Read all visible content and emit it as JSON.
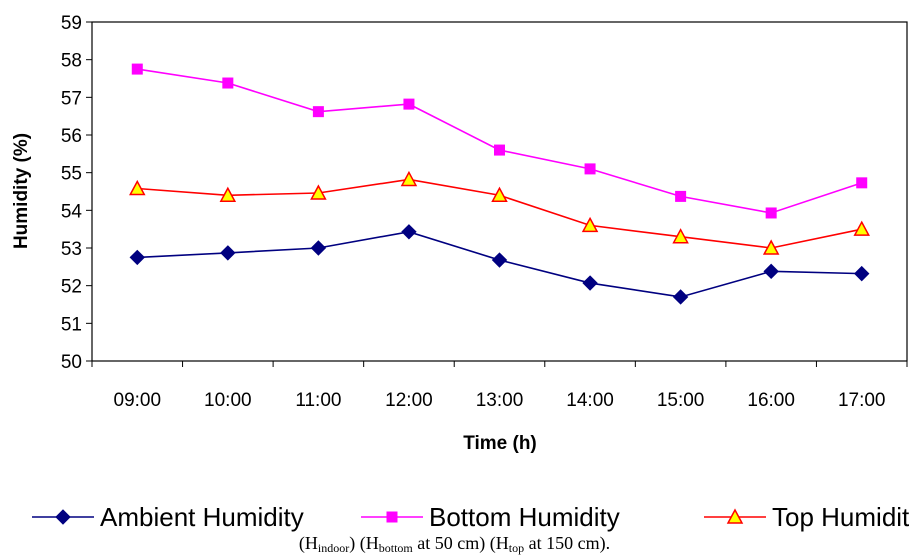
{
  "chart_data": {
    "type": "line",
    "categories": [
      "09:00",
      "10:00",
      "11:00",
      "12:00",
      "13:00",
      "14:00",
      "15:00",
      "16:00",
      "17:00"
    ],
    "series": [
      {
        "name": "Ambient Humidity",
        "color": "#000080",
        "marker": "diamond",
        "values": [
          52.75,
          52.87,
          53.0,
          53.43,
          52.68,
          52.07,
          51.7,
          52.38,
          52.32
        ]
      },
      {
        "name": "Bottom Humidity",
        "color": "#ff00ff",
        "marker": "square",
        "values": [
          57.75,
          57.38,
          56.62,
          56.82,
          55.6,
          55.1,
          54.37,
          53.93,
          54.73
        ]
      },
      {
        "name": "Top Humidity",
        "color": "#ff0000",
        "marker_fill": "#ffff00",
        "marker": "triangle",
        "values": [
          54.58,
          54.4,
          54.46,
          54.82,
          54.4,
          53.6,
          53.3,
          53.0,
          53.5
        ]
      }
    ],
    "xlabel": "Time (h)",
    "ylabel": "Humidity (%)",
    "ylim": [
      50,
      59
    ],
    "yticks": [
      50,
      51,
      52,
      53,
      54,
      55,
      56,
      57,
      58,
      59
    ],
    "grid": false,
    "legend": "bottom"
  },
  "caption": [
    {
      "text": "(H"
    },
    {
      "sub": "indoor"
    },
    {
      "text": ") (H"
    },
    {
      "sub": "bottom"
    },
    {
      "text": " at 50 cm) (H"
    },
    {
      "sub": "top"
    },
    {
      "text": " at 150 cm)."
    }
  ]
}
